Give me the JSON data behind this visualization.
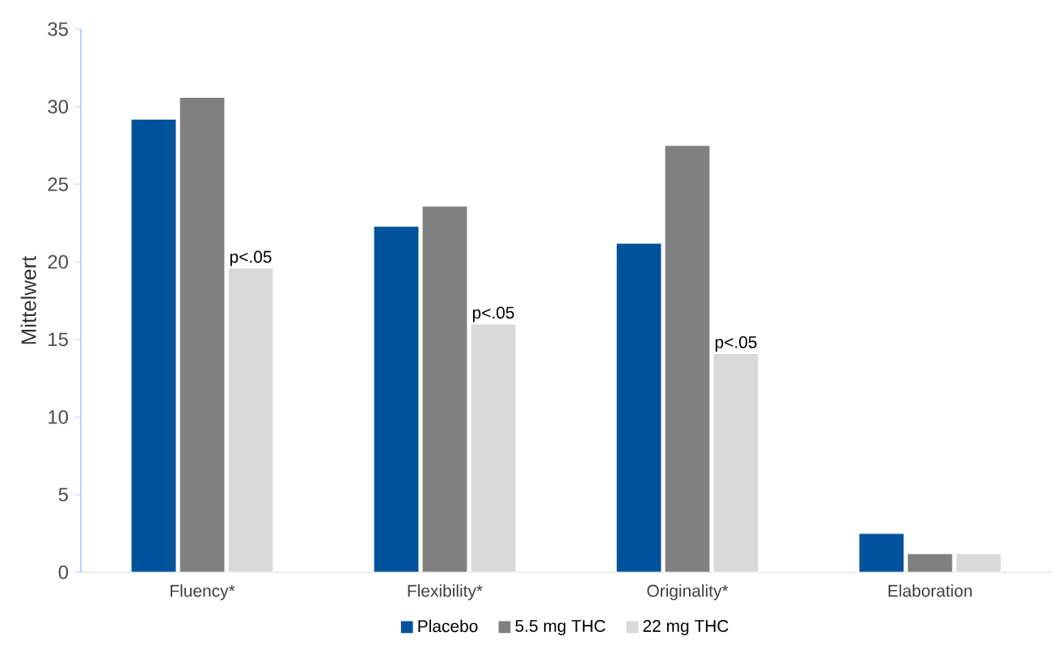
{
  "chart_data": {
    "type": "bar",
    "ylabel": "Mittelwert",
    "categories": [
      "Fluency*",
      "Flexibility*",
      "Originality*",
      "Elaboration"
    ],
    "series": [
      {
        "name": "Placebo",
        "color": "#00529b",
        "values": [
          29.2,
          22.3,
          21.2,
          2.5
        ]
      },
      {
        "name": "5.5 mg THC",
        "color": "#808080",
        "values": [
          30.6,
          23.6,
          27.5,
          1.2
        ]
      },
      {
        "name": "22 mg THC",
        "color": "#d9d9d9",
        "values": [
          19.6,
          16.0,
          14.1,
          1.2
        ]
      }
    ],
    "ylim": [
      0,
      35
    ],
    "yticks": [
      0,
      5,
      10,
      15,
      20,
      25,
      30,
      35
    ],
    "grid": false,
    "legend": "bottom",
    "annotations": [
      "p<.05",
      "p<.05",
      "p<.05"
    ]
  }
}
